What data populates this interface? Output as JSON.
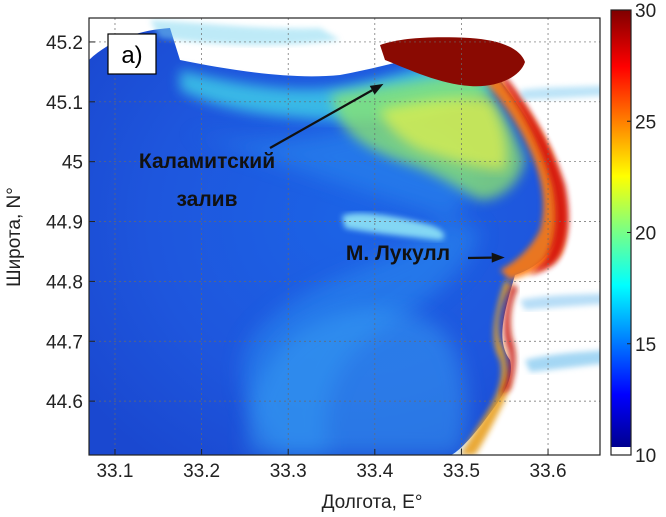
{
  "chart_data": {
    "type": "heatmap",
    "panel_label": "а)",
    "xlabel": "Долгота, E°",
    "ylabel": "Широта, N°",
    "xlim": [
      33.07,
      33.66
    ],
    "ylim": [
      44.51,
      45.24
    ],
    "x_ticks": [
      "33.1",
      "33.2",
      "33.3",
      "33.4",
      "33.5",
      "33.6"
    ],
    "y_ticks": [
      "44.6",
      "44.7",
      "44.8",
      "44.9",
      "45",
      "45.1",
      "45.2"
    ],
    "colorbar": {
      "min": 10,
      "max": 30,
      "ticks": [
        "10",
        "15",
        "20",
        "25",
        "30"
      ],
      "colormap": "jet",
      "below_min_color": "#ffffff"
    },
    "annotations": [
      {
        "lines": [
          "Каламитский",
          "залив"
        ],
        "arrow_to": [
          33.41,
          45.13
        ]
      },
      {
        "lines": [
          "М. Лукулл"
        ],
        "arrow_to": [
          33.55,
          44.84
        ]
      }
    ],
    "grid": true
  }
}
